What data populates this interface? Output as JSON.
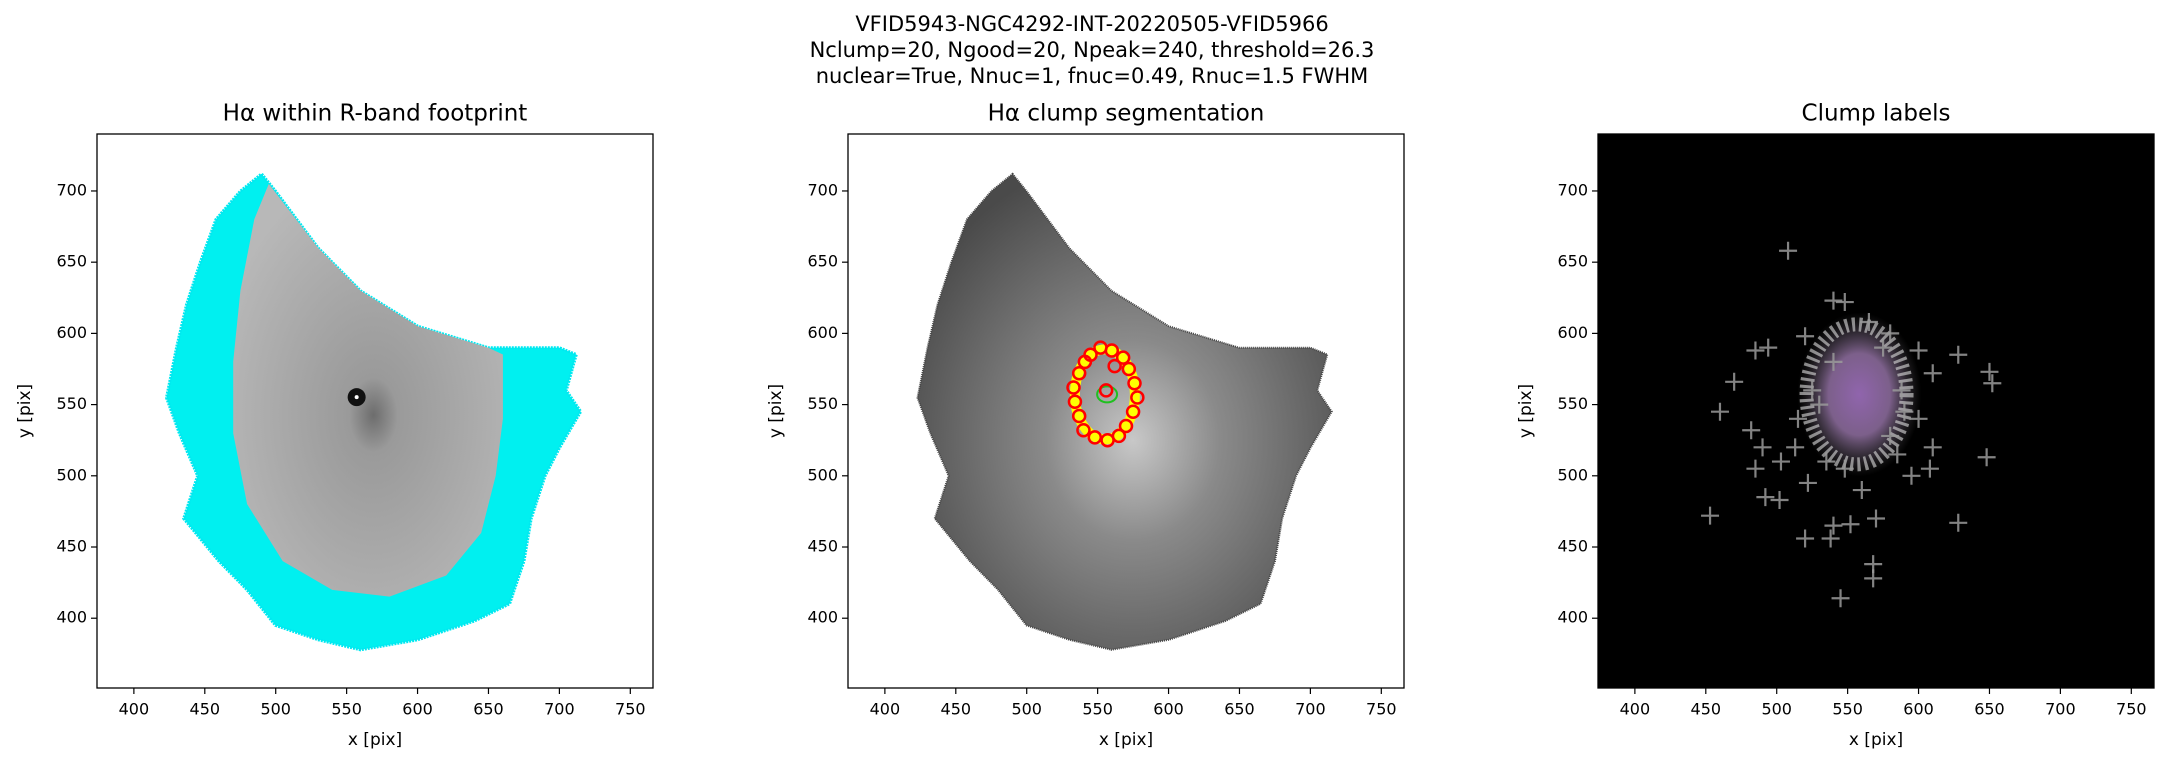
{
  "figure": {
    "title_lines": [
      "VFID5943-NGC4292-INT-20220505-VFID5966",
      "Nclump=20, Ngood=20, Npeak=240, threshold=26.3",
      "nuclear=True, Nnuc=1, fnuc=0.49, Rnuc=1.5 FWHM"
    ]
  },
  "chart_data": [
    {
      "type": "image",
      "title": "Hα within R-band footprint",
      "xlabel": "x [pix]",
      "ylabel": "y [pix]",
      "xlim": [
        374,
        766
      ],
      "ylim": [
        351,
        740
      ],
      "xticks": [
        400,
        450,
        500,
        550,
        600,
        650,
        700,
        750
      ],
      "yticks": [
        400,
        450,
        500,
        550,
        600,
        650,
        700
      ],
      "background": "#ffffff"
    },
    {
      "type": "scatter",
      "title": "Hα clump segmentation",
      "xlabel": "x [pix]",
      "ylabel": "y [pix]",
      "xlim": [
        374,
        766
      ],
      "ylim": [
        351,
        740
      ],
      "xticks": [
        400,
        450,
        500,
        550,
        600,
        650,
        700,
        750
      ],
      "yticks": [
        400,
        450,
        500,
        550,
        600,
        650,
        700
      ],
      "background": "#ffffff",
      "marker": "circle",
      "color": "#ff0000",
      "x": [
        545,
        552,
        560,
        568,
        572,
        576,
        578,
        575,
        570,
        565,
        557,
        548,
        540,
        537,
        534,
        533,
        537,
        541,
        556,
        562
      ],
      "y": [
        585,
        590,
        588,
        583,
        575,
        565,
        555,
        545,
        535,
        528,
        525,
        527,
        532,
        542,
        552,
        562,
        572,
        580,
        560,
        577
      ]
    },
    {
      "type": "scatter",
      "title": "Clump labels",
      "xlabel": "x [pix]",
      "ylabel": "y [pix]",
      "xlim": [
        374,
        766
      ],
      "ylim": [
        351,
        740
      ],
      "xticks": [
        400,
        450,
        500,
        550,
        600,
        650,
        700,
        750
      ],
      "yticks": [
        400,
        450,
        500,
        550,
        600,
        650,
        700
      ],
      "background": "#000000",
      "marker": "plus",
      "color": "#9a9a9a",
      "x": [
        508,
        548,
        540,
        565,
        580,
        600,
        628,
        650,
        652,
        520,
        485,
        494,
        470,
        460,
        482,
        490,
        485,
        503,
        513,
        492,
        502,
        453,
        522,
        520,
        540,
        552,
        538,
        545,
        568,
        568,
        628,
        648,
        608,
        595,
        585,
        600,
        610,
        588,
        530,
        525,
        540,
        575,
        580,
        560,
        548,
        535,
        570,
        590,
        515,
        610
      ],
      "y": [
        658,
        622,
        623,
        608,
        600,
        588,
        585,
        573,
        565,
        598,
        588,
        590,
        566,
        545,
        532,
        520,
        505,
        510,
        520,
        485,
        483,
        472,
        495,
        456,
        465,
        466,
        456,
        414,
        438,
        428,
        467,
        513,
        505,
        500,
        515,
        540,
        572,
        560,
        550,
        560,
        580,
        590,
        528,
        490,
        505,
        510,
        470,
        545,
        540,
        520
      ]
    }
  ]
}
